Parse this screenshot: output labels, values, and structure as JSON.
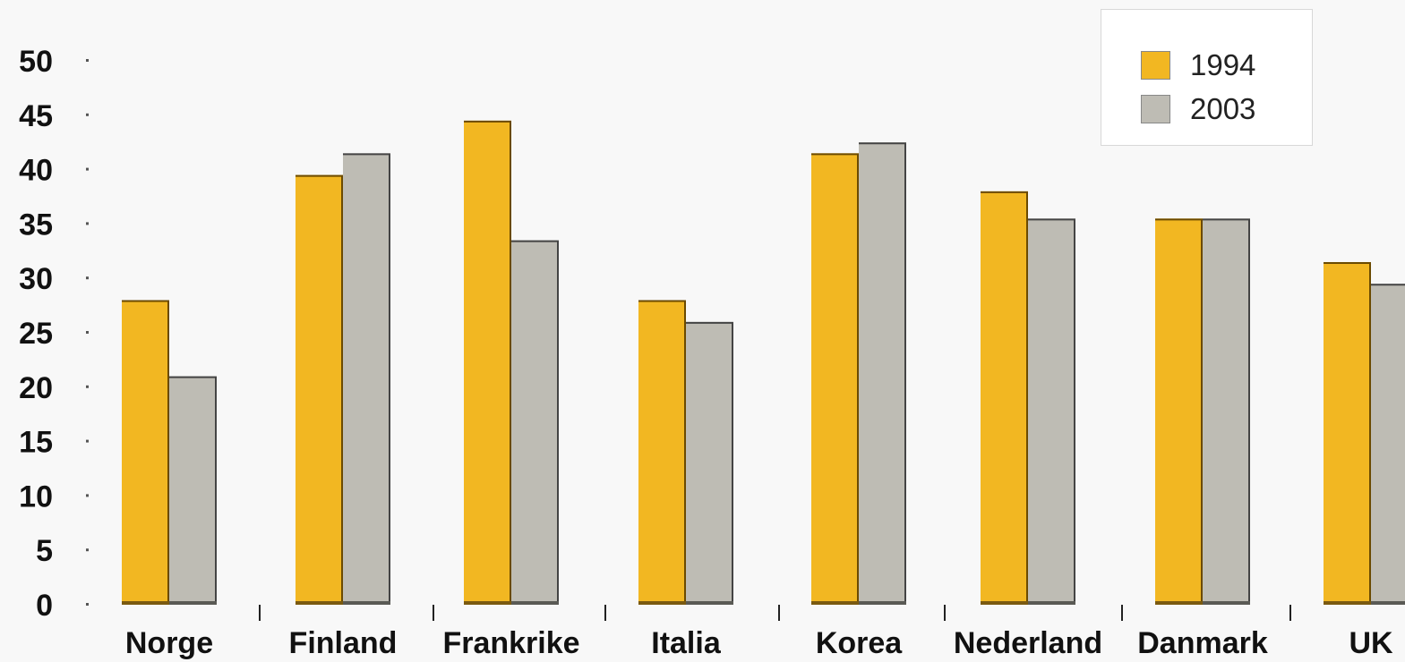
{
  "chart_data": {
    "type": "bar",
    "categories": [
      "Norge",
      "Finland",
      "Frankrike",
      "Italia",
      "Korea",
      "Nederland",
      "Danmark",
      "UK"
    ],
    "series": [
      {
        "name": "1994",
        "color": "#f2b722",
        "values": [
          28,
          39.5,
          44.5,
          28,
          41.5,
          38,
          35.5,
          31.5
        ]
      },
      {
        "name": "2003",
        "color": "#bebcb4",
        "values": [
          21,
          41.5,
          33.5,
          26,
          42.5,
          35.5,
          35.5,
          29.5
        ]
      }
    ],
    "yticks": [
      0,
      5,
      10,
      15,
      20,
      25,
      30,
      35,
      40,
      45,
      50
    ],
    "ylim": [
      0,
      50
    ],
    "legend_position": "top-right"
  }
}
